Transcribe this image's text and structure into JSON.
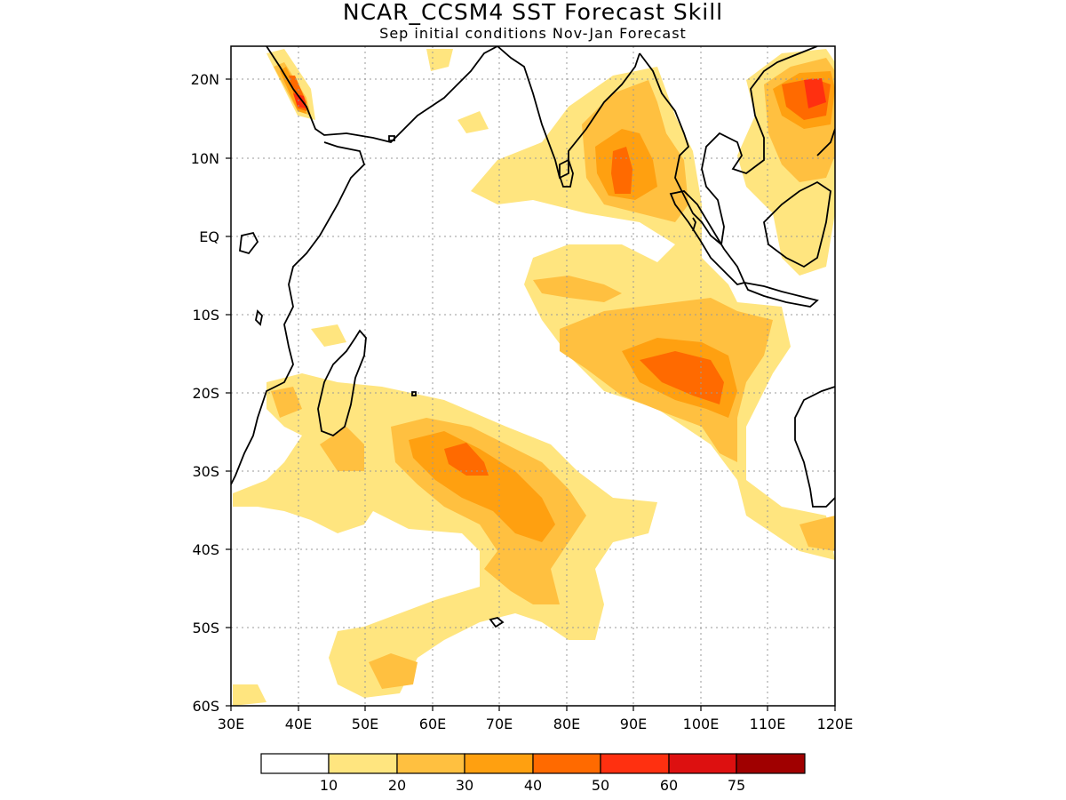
{
  "title": "NCAR_CCSM4  SST Forecast Skill",
  "subtitle": "Sep initial conditions   Nov-Jan Forecast",
  "axes": {
    "lon_labels": [
      "30E",
      "40E",
      "50E",
      "60E",
      "70E",
      "80E",
      "90E",
      "100E",
      "110E",
      "120E"
    ],
    "lat_labels": [
      "20N",
      "10N",
      "EQ",
      "10S",
      "20S",
      "30S",
      "40S",
      "50S",
      "60S"
    ]
  },
  "colorbar": {
    "colors": [
      "#ffffff",
      "#ffe57f",
      "#ffc040",
      "#ffa010",
      "#ff6a00",
      "#ff3010",
      "#dd1010",
      "#a00000"
    ],
    "labels": [
      "10",
      "20",
      "30",
      "40",
      "50",
      "60",
      "75"
    ]
  },
  "colors": {
    "land_outline": "#000000",
    "grid": "#999999"
  }
}
